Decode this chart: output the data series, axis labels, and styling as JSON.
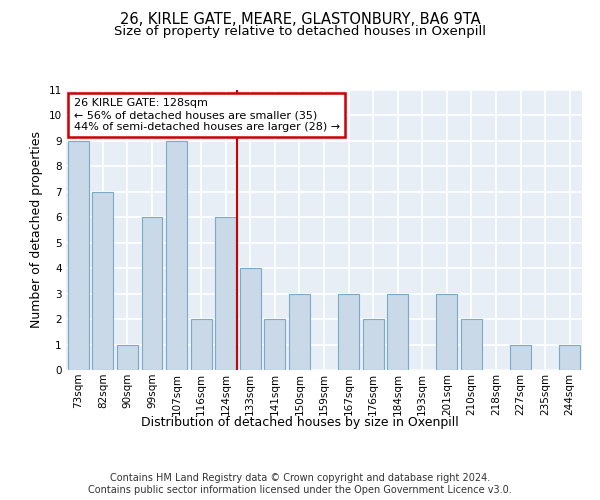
{
  "title": "26, KIRLE GATE, MEARE, GLASTONBURY, BA6 9TA",
  "subtitle": "Size of property relative to detached houses in Oxenpill",
  "xlabel": "Distribution of detached houses by size in Oxenpill",
  "ylabel": "Number of detached properties",
  "categories": [
    "73sqm",
    "82sqm",
    "90sqm",
    "99sqm",
    "107sqm",
    "116sqm",
    "124sqm",
    "133sqm",
    "141sqm",
    "150sqm",
    "159sqm",
    "167sqm",
    "176sqm",
    "184sqm",
    "193sqm",
    "201sqm",
    "210sqm",
    "218sqm",
    "227sqm",
    "235sqm",
    "244sqm"
  ],
  "values": [
    9,
    7,
    1,
    6,
    9,
    2,
    6,
    4,
    2,
    3,
    0,
    3,
    2,
    3,
    0,
    3,
    2,
    0,
    1,
    0,
    1
  ],
  "bar_color": "#c9d9e8",
  "bar_edge_color": "#7aaac8",
  "background_color": "#e8eef5",
  "grid_color": "#ffffff",
  "annotation_text": "26 KIRLE GATE: 128sqm\n← 56% of detached houses are smaller (35)\n44% of semi-detached houses are larger (28) →",
  "annotation_box_color": "#ffffff",
  "annotation_box_edge_color": "#cc0000",
  "redline_x": 6.44,
  "ylim": [
    0,
    11
  ],
  "yticks": [
    0,
    1,
    2,
    3,
    4,
    5,
    6,
    7,
    8,
    9,
    10,
    11
  ],
  "footer": "Contains HM Land Registry data © Crown copyright and database right 2024.\nContains public sector information licensed under the Open Government Licence v3.0.",
  "title_fontsize": 10.5,
  "subtitle_fontsize": 9.5,
  "xlabel_fontsize": 9,
  "ylabel_fontsize": 9,
  "tick_fontsize": 7.5,
  "footer_fontsize": 7
}
